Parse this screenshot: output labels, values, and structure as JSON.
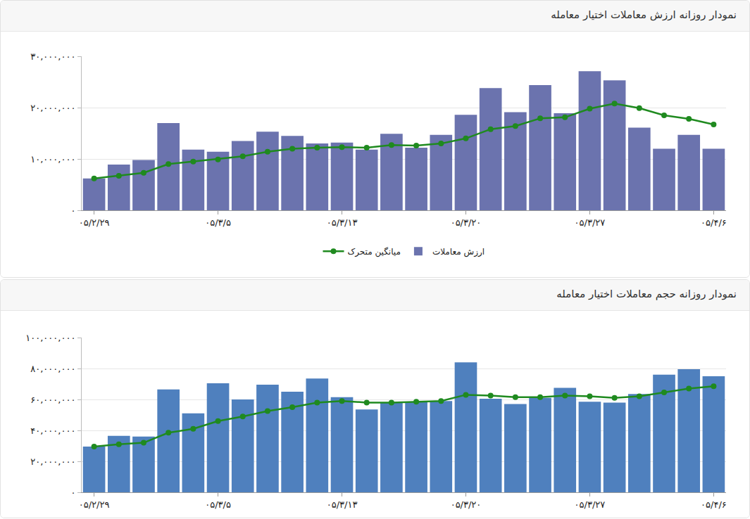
{
  "chart_data": [
    {
      "type": "bar",
      "title": "نمودار روزانه ارزش معاملات اختیار معامله",
      "categories": [
        "۰۵/۲/۲۹",
        null,
        null,
        null,
        null,
        "۰۵/۳/۵",
        null,
        null,
        null,
        null,
        "۰۵/۳/۱۳",
        null,
        null,
        null,
        null,
        "۰۵/۳/۲۰",
        null,
        null,
        null,
        null,
        "۰۵/۳/۲۷",
        null,
        null,
        null,
        null,
        "۰۵/۴/۶"
      ],
      "series": [
        {
          "name": "ارزش معاملات",
          "type": "bar",
          "color": "#6b73ae",
          "values": [
            6200000,
            8900000,
            9800000,
            17000000,
            11800000,
            11400000,
            13500000,
            15300000,
            14500000,
            13000000,
            13200000,
            11800000,
            14900000,
            12200000,
            14700000,
            18600000,
            23800000,
            19100000,
            24400000,
            18900000,
            27100000,
            25300000,
            16100000,
            12000000,
            14700000,
            12000000
          ]
        },
        {
          "name": "میانگین متحرک",
          "type": "line",
          "color": "#1f8a1f",
          "marker": "circle",
          "values": [
            6200000,
            6700000,
            7300000,
            9000000,
            9500000,
            9900000,
            10500000,
            11400000,
            12000000,
            12200000,
            12300000,
            12200000,
            12700000,
            12600000,
            13000000,
            14000000,
            15800000,
            16400000,
            17900000,
            18100000,
            19800000,
            20800000,
            19900000,
            18500000,
            17800000,
            16700000
          ]
        }
      ],
      "ylim": [
        0,
        30000000
      ],
      "yticks": [
        {
          "value": 0,
          "label": "۰"
        },
        {
          "value": 10000000,
          "label": "۱۰,۰۰۰,۰۰۰"
        },
        {
          "value": 20000000,
          "label": "۲۰,۰۰۰,۰۰۰"
        },
        {
          "value": 30000000,
          "label": "۳۰,۰۰۰,۰۰۰"
        }
      ],
      "grid": true,
      "legend": "bottom"
    },
    {
      "type": "bar",
      "title": "نمودار روزانه حجم معاملات اختیار معامله",
      "categories": [
        "۰۵/۲/۲۹",
        null,
        null,
        null,
        null,
        "۰۵/۳/۵",
        null,
        null,
        null,
        null,
        "۰۵/۳/۱۳",
        null,
        null,
        null,
        null,
        "۰۵/۳/۲۰",
        null,
        null,
        null,
        null,
        "۰۵/۳/۲۷",
        null,
        null,
        null,
        null,
        "۰۵/۴/۶"
      ],
      "series": [
        {
          "type": "bar",
          "color": "#4f80be",
          "values": [
            29500000,
            36500000,
            36000000,
            66500000,
            51000000,
            70500000,
            60000000,
            69500000,
            65000000,
            73500000,
            61500000,
            53500000,
            58000000,
            58500000,
            59000000,
            84000000,
            60500000,
            57000000,
            61000000,
            67500000,
            58500000,
            58000000,
            63500000,
            76000000,
            79500000,
            75000000
          ]
        },
        {
          "type": "line",
          "color": "#1f8a1f",
          "marker": "circle",
          "values": [
            29500000,
            31000000,
            32000000,
            38500000,
            41000000,
            46000000,
            49000000,
            52500000,
            55000000,
            58000000,
            59000000,
            58000000,
            58000000,
            58500000,
            59000000,
            63000000,
            62500000,
            61500000,
            61500000,
            62500000,
            62000000,
            61000000,
            62000000,
            64500000,
            67000000,
            68500000
          ]
        }
      ],
      "ylim": [
        0,
        100000000
      ],
      "yticks": [
        {
          "value": 0,
          "label": "۰"
        },
        {
          "value": 20000000,
          "label": "۲۰,۰۰۰,۰۰۰"
        },
        {
          "value": 40000000,
          "label": "۴۰,۰۰۰,۰۰۰"
        },
        {
          "value": 60000000,
          "label": "۶۰,۰۰۰,۰۰۰"
        },
        {
          "value": 80000000,
          "label": "۸۰,۰۰۰,۰۰۰"
        },
        {
          "value": 100000000,
          "label": "۱۰۰,۰۰۰,۰۰۰"
        }
      ],
      "grid": true
    }
  ]
}
